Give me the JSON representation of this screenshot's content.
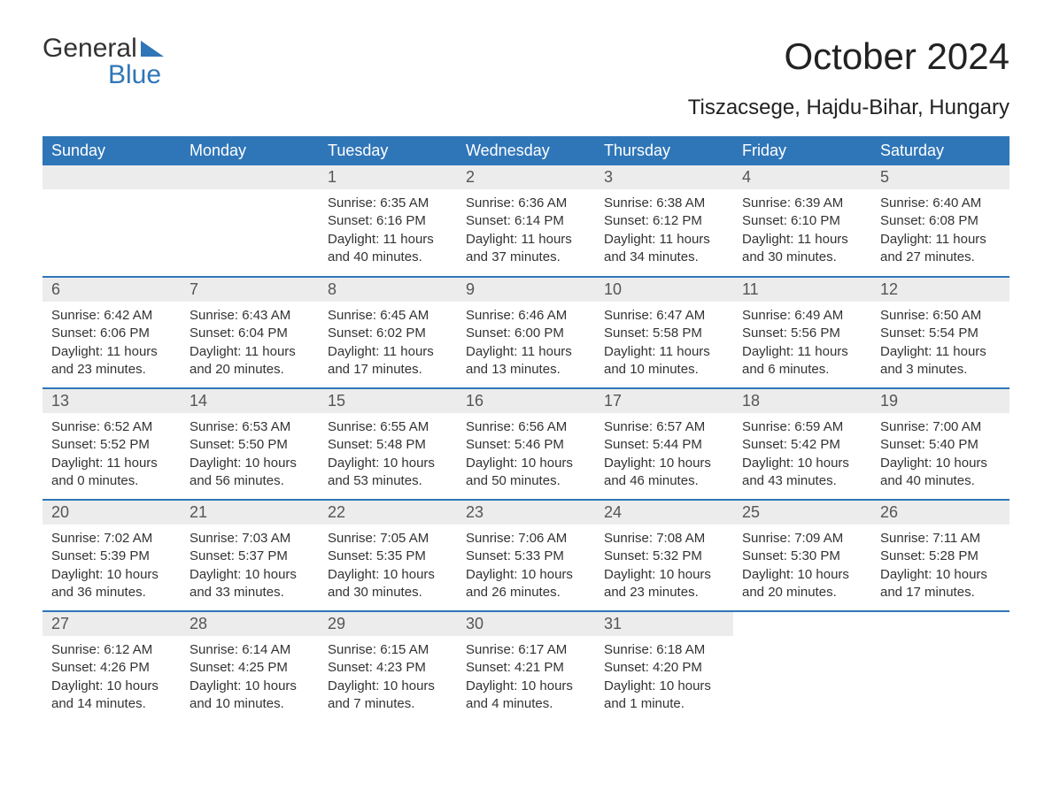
{
  "logo": {
    "text1": "General",
    "text2": "Blue"
  },
  "header": {
    "title": "October 2024",
    "location": "Tiszacsege, Hajdu-Bihar, Hungary"
  },
  "style": {
    "accent_color": "#2f76b8",
    "header_text_color": "#ffffff",
    "daynum_bg": "#ececec",
    "body_bg": "#ffffff",
    "text_color": "#333333",
    "title_fontsize_pt": 32,
    "subtitle_fontsize_pt": 18,
    "dayheader_fontsize_pt": 14,
    "cell_fontsize_pt": 11
  },
  "days_of_week": [
    "Sunday",
    "Monday",
    "Tuesday",
    "Wednesday",
    "Thursday",
    "Friday",
    "Saturday"
  ],
  "weeks": [
    [
      null,
      null,
      {
        "n": "1",
        "sunrise": "6:35 AM",
        "sunset": "6:16 PM",
        "daylight": "11 hours and 40 minutes."
      },
      {
        "n": "2",
        "sunrise": "6:36 AM",
        "sunset": "6:14 PM",
        "daylight": "11 hours and 37 minutes."
      },
      {
        "n": "3",
        "sunrise": "6:38 AM",
        "sunset": "6:12 PM",
        "daylight": "11 hours and 34 minutes."
      },
      {
        "n": "4",
        "sunrise": "6:39 AM",
        "sunset": "6:10 PM",
        "daylight": "11 hours and 30 minutes."
      },
      {
        "n": "5",
        "sunrise": "6:40 AM",
        "sunset": "6:08 PM",
        "daylight": "11 hours and 27 minutes."
      }
    ],
    [
      {
        "n": "6",
        "sunrise": "6:42 AM",
        "sunset": "6:06 PM",
        "daylight": "11 hours and 23 minutes."
      },
      {
        "n": "7",
        "sunrise": "6:43 AM",
        "sunset": "6:04 PM",
        "daylight": "11 hours and 20 minutes."
      },
      {
        "n": "8",
        "sunrise": "6:45 AM",
        "sunset": "6:02 PM",
        "daylight": "11 hours and 17 minutes."
      },
      {
        "n": "9",
        "sunrise": "6:46 AM",
        "sunset": "6:00 PM",
        "daylight": "11 hours and 13 minutes."
      },
      {
        "n": "10",
        "sunrise": "6:47 AM",
        "sunset": "5:58 PM",
        "daylight": "11 hours and 10 minutes."
      },
      {
        "n": "11",
        "sunrise": "6:49 AM",
        "sunset": "5:56 PM",
        "daylight": "11 hours and 6 minutes."
      },
      {
        "n": "12",
        "sunrise": "6:50 AM",
        "sunset": "5:54 PM",
        "daylight": "11 hours and 3 minutes."
      }
    ],
    [
      {
        "n": "13",
        "sunrise": "6:52 AM",
        "sunset": "5:52 PM",
        "daylight": "11 hours and 0 minutes."
      },
      {
        "n": "14",
        "sunrise": "6:53 AM",
        "sunset": "5:50 PM",
        "daylight": "10 hours and 56 minutes."
      },
      {
        "n": "15",
        "sunrise": "6:55 AM",
        "sunset": "5:48 PM",
        "daylight": "10 hours and 53 minutes."
      },
      {
        "n": "16",
        "sunrise": "6:56 AM",
        "sunset": "5:46 PM",
        "daylight": "10 hours and 50 minutes."
      },
      {
        "n": "17",
        "sunrise": "6:57 AM",
        "sunset": "5:44 PM",
        "daylight": "10 hours and 46 minutes."
      },
      {
        "n": "18",
        "sunrise": "6:59 AM",
        "sunset": "5:42 PM",
        "daylight": "10 hours and 43 minutes."
      },
      {
        "n": "19",
        "sunrise": "7:00 AM",
        "sunset": "5:40 PM",
        "daylight": "10 hours and 40 minutes."
      }
    ],
    [
      {
        "n": "20",
        "sunrise": "7:02 AM",
        "sunset": "5:39 PM",
        "daylight": "10 hours and 36 minutes."
      },
      {
        "n": "21",
        "sunrise": "7:03 AM",
        "sunset": "5:37 PM",
        "daylight": "10 hours and 33 minutes."
      },
      {
        "n": "22",
        "sunrise": "7:05 AM",
        "sunset": "5:35 PM",
        "daylight": "10 hours and 30 minutes."
      },
      {
        "n": "23",
        "sunrise": "7:06 AM",
        "sunset": "5:33 PM",
        "daylight": "10 hours and 26 minutes."
      },
      {
        "n": "24",
        "sunrise": "7:08 AM",
        "sunset": "5:32 PM",
        "daylight": "10 hours and 23 minutes."
      },
      {
        "n": "25",
        "sunrise": "7:09 AM",
        "sunset": "5:30 PM",
        "daylight": "10 hours and 20 minutes."
      },
      {
        "n": "26",
        "sunrise": "7:11 AM",
        "sunset": "5:28 PM",
        "daylight": "10 hours and 17 minutes."
      }
    ],
    [
      {
        "n": "27",
        "sunrise": "6:12 AM",
        "sunset": "4:26 PM",
        "daylight": "10 hours and 14 minutes."
      },
      {
        "n": "28",
        "sunrise": "6:14 AM",
        "sunset": "4:25 PM",
        "daylight": "10 hours and 10 minutes."
      },
      {
        "n": "29",
        "sunrise": "6:15 AM",
        "sunset": "4:23 PM",
        "daylight": "10 hours and 7 minutes."
      },
      {
        "n": "30",
        "sunrise": "6:17 AM",
        "sunset": "4:21 PM",
        "daylight": "10 hours and 4 minutes."
      },
      {
        "n": "31",
        "sunrise": "6:18 AM",
        "sunset": "4:20 PM",
        "daylight": "10 hours and 1 minute."
      },
      null,
      null
    ]
  ],
  "labels": {
    "sunrise": "Sunrise:",
    "sunset": "Sunset:",
    "daylight": "Daylight:"
  }
}
